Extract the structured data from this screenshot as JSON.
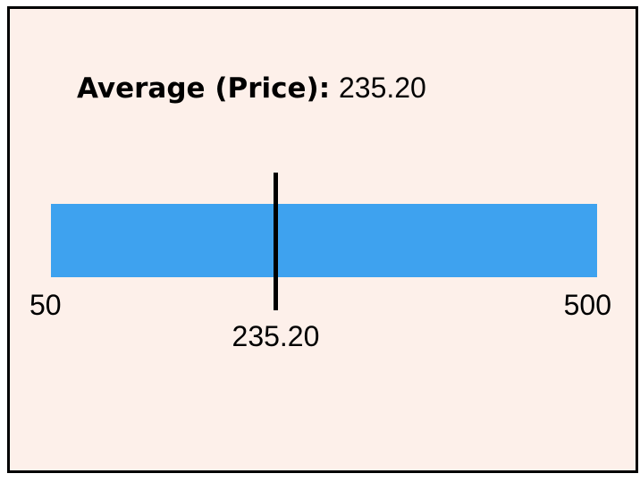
{
  "chart_data": {
    "type": "bullet",
    "title_label": "Average (Price):",
    "title_value": "235.20",
    "min": 50,
    "max": 500,
    "min_label": "50",
    "max_label": "500",
    "value": 235.2,
    "value_label": "235.20",
    "bar_color": "#3ea2ef",
    "marker_color": "#000000"
  }
}
